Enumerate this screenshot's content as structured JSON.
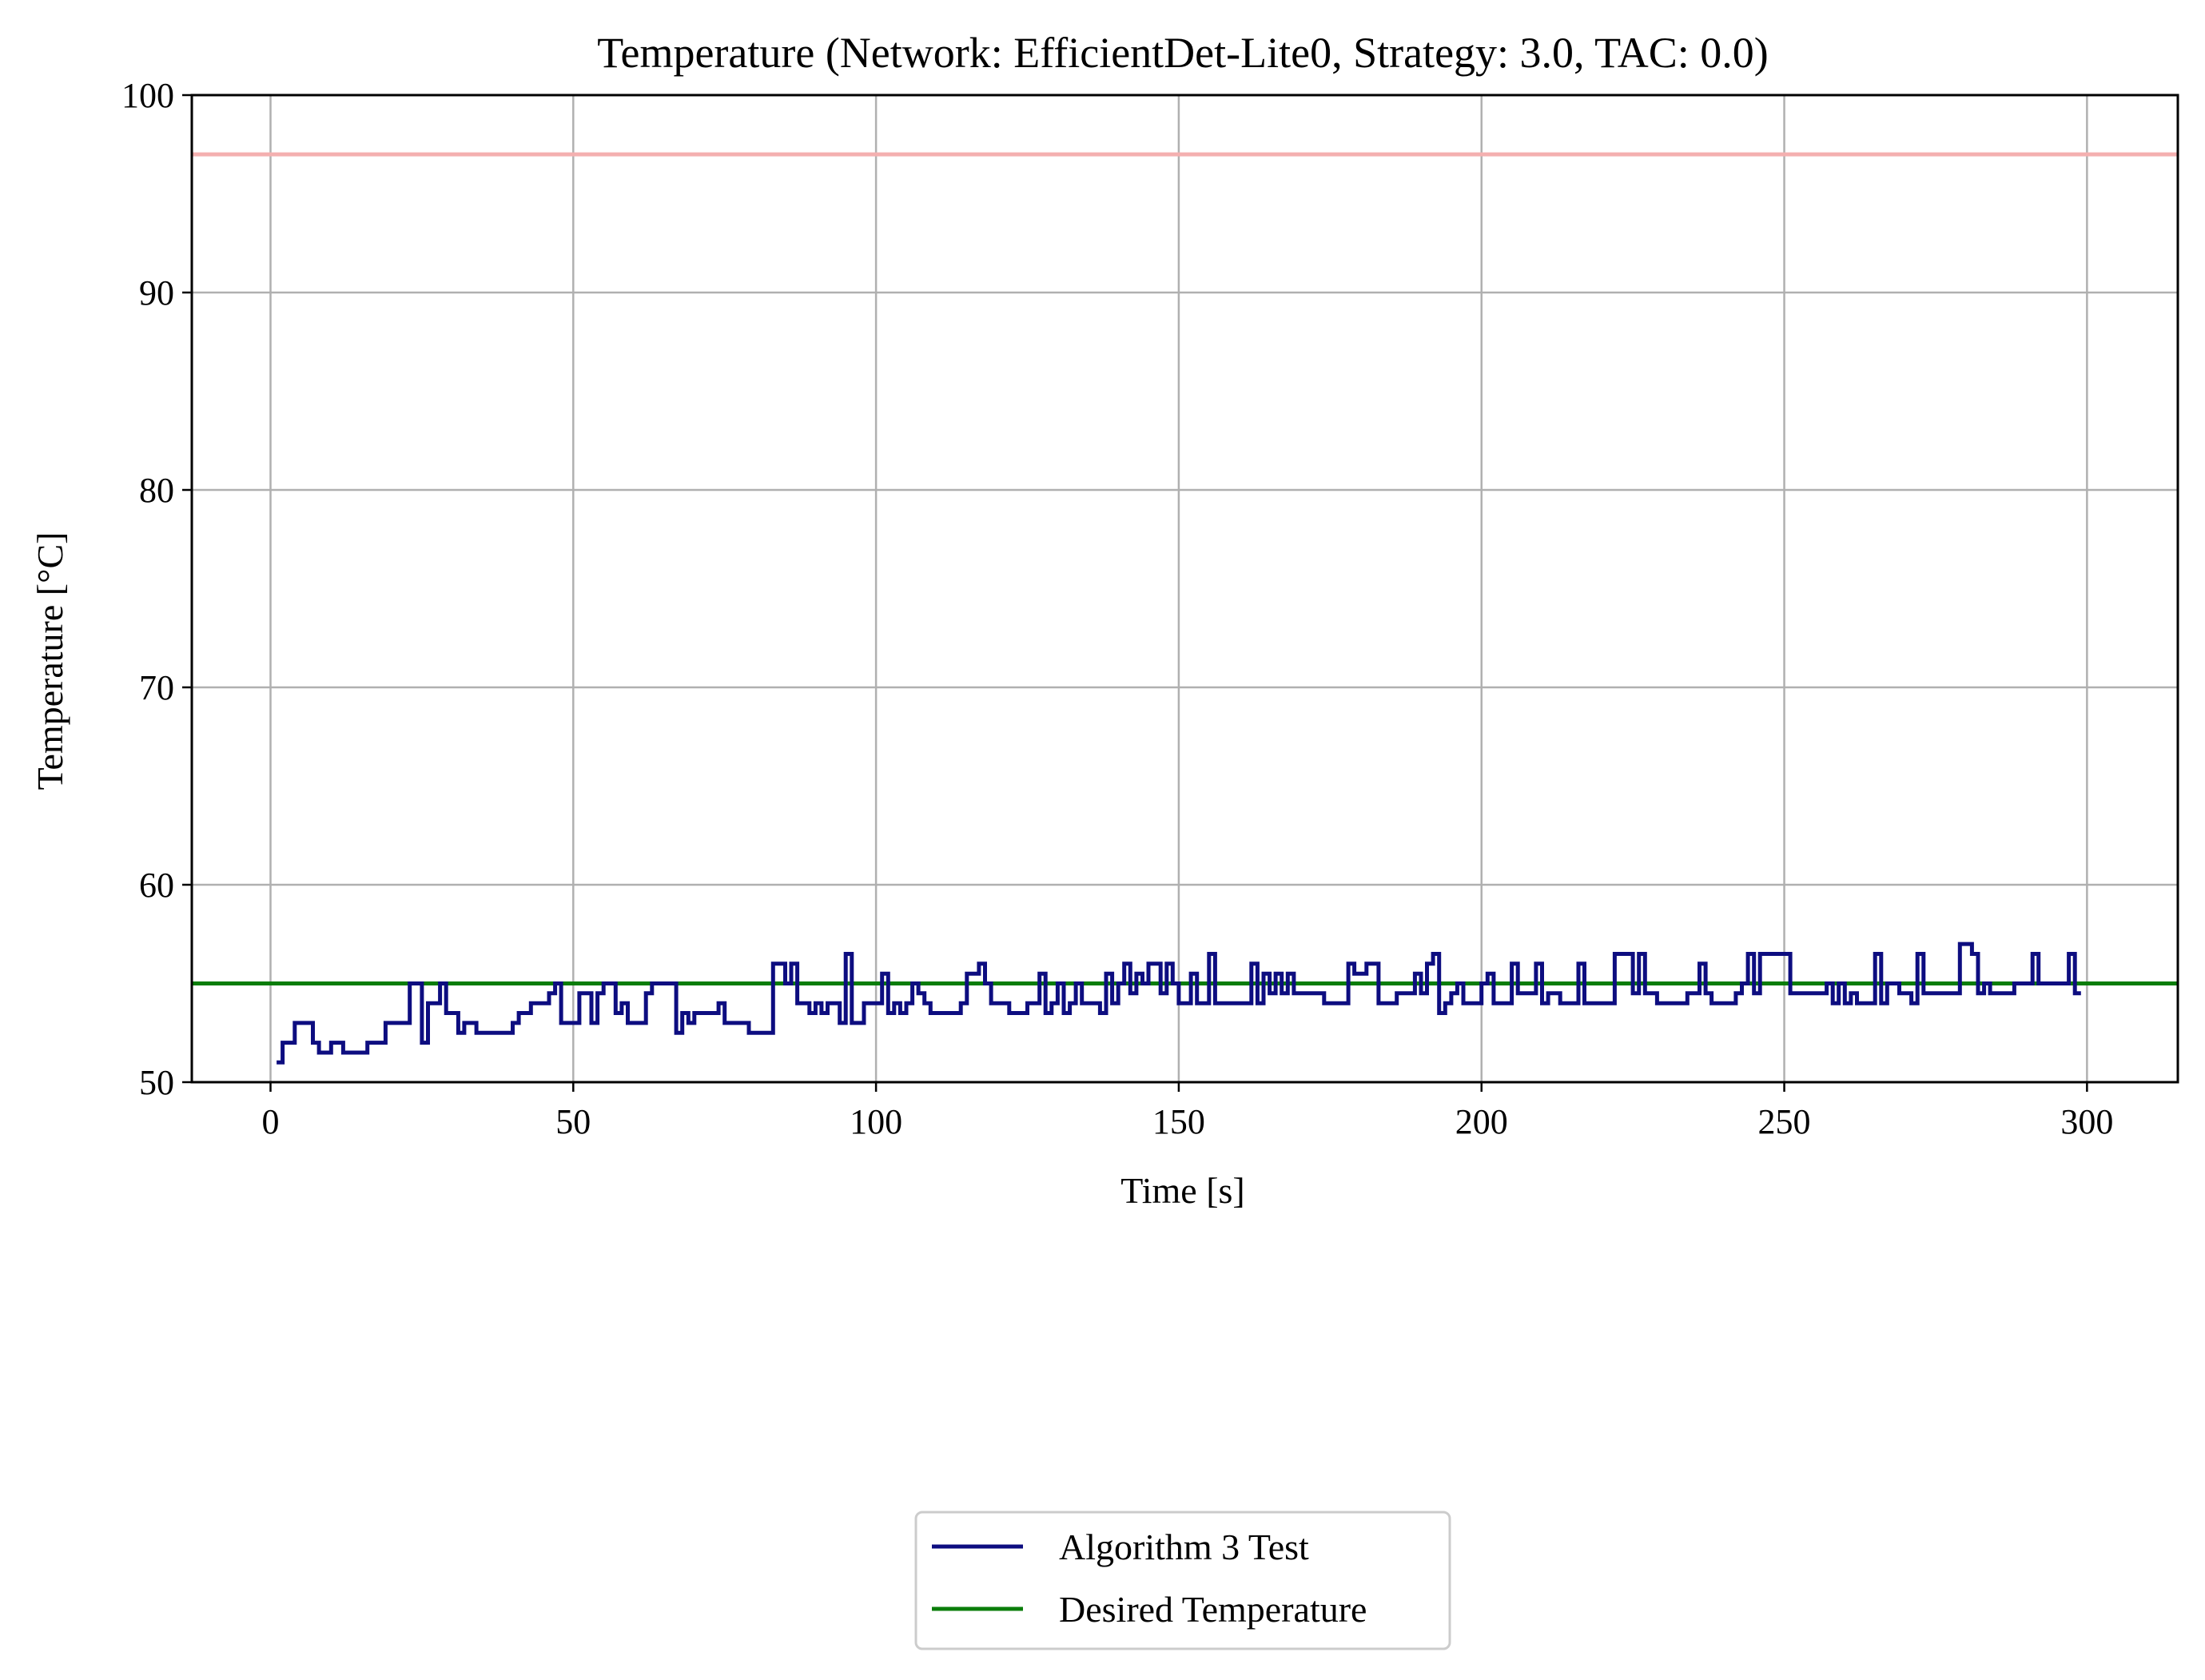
{
  "chart_data": {
    "type": "line",
    "title": "Temperature (Network: EfficientDet-Lite0, Strategy: 3.0, TAC: 0.0)",
    "xlabel": "Time [s]",
    "ylabel": "Temperature [°C]",
    "xlim": [
      -13,
      315
    ],
    "ylim": [
      50,
      100
    ],
    "xticks": [
      0,
      50,
      100,
      150,
      200,
      250,
      300
    ],
    "yticks": [
      50,
      60,
      70,
      80,
      90,
      100
    ],
    "grid": true,
    "legend_position": "bottom-center",
    "reference_lines": [
      {
        "y": 97,
        "color": "#f4b0b0",
        "in_legend": false
      },
      {
        "y": 55,
        "color": "#0a7d0a",
        "in_legend": true
      }
    ],
    "series": [
      {
        "name": "Algorithm 3 Test",
        "color": "#0d0d80",
        "style": "step",
        "points": [
          [
            1,
            51
          ],
          [
            2,
            52
          ],
          [
            3,
            52
          ],
          [
            4,
            53
          ],
          [
            5,
            53
          ],
          [
            6,
            53
          ],
          [
            7,
            52
          ],
          [
            8,
            51.5
          ],
          [
            9,
            51.5
          ],
          [
            10,
            52
          ],
          [
            11,
            52
          ],
          [
            12,
            51.5
          ],
          [
            13,
            51.5
          ],
          [
            14,
            51.5
          ],
          [
            15,
            51.5
          ],
          [
            16,
            52
          ],
          [
            17,
            52
          ],
          [
            18,
            52
          ],
          [
            19,
            53
          ],
          [
            20,
            53
          ],
          [
            21,
            53
          ],
          [
            22,
            53
          ],
          [
            23,
            55
          ],
          [
            24,
            55
          ],
          [
            25,
            52
          ],
          [
            26,
            54
          ],
          [
            27,
            54
          ],
          [
            28,
            55
          ],
          [
            29,
            53.5
          ],
          [
            30,
            53.5
          ],
          [
            31,
            52.5
          ],
          [
            32,
            53
          ],
          [
            33,
            53
          ],
          [
            34,
            52.5
          ],
          [
            35,
            52.5
          ],
          [
            36,
            52.5
          ],
          [
            37,
            52.5
          ],
          [
            38,
            52.5
          ],
          [
            39,
            52.5
          ],
          [
            40,
            53
          ],
          [
            41,
            53.5
          ],
          [
            42,
            53.5
          ],
          [
            43,
            54
          ],
          [
            44,
            54
          ],
          [
            45,
            54
          ],
          [
            46,
            54.5
          ],
          [
            47,
            55
          ],
          [
            48,
            53
          ],
          [
            49,
            53
          ],
          [
            50,
            53
          ],
          [
            51,
            54.5
          ],
          [
            52,
            54.5
          ],
          [
            53,
            53
          ],
          [
            54,
            54.5
          ],
          [
            55,
            55
          ],
          [
            56,
            55
          ],
          [
            57,
            53.5
          ],
          [
            58,
            54
          ],
          [
            59,
            53
          ],
          [
            60,
            53
          ],
          [
            61,
            53
          ],
          [
            62,
            54.5
          ],
          [
            63,
            55
          ],
          [
            64,
            55
          ],
          [
            65,
            55
          ],
          [
            66,
            55
          ],
          [
            67,
            52.5
          ],
          [
            68,
            53.5
          ],
          [
            69,
            53
          ],
          [
            70,
            53.5
          ],
          [
            71,
            53.5
          ],
          [
            72,
            53.5
          ],
          [
            73,
            53.5
          ],
          [
            74,
            54
          ],
          [
            75,
            53
          ],
          [
            76,
            53
          ],
          [
            77,
            53
          ],
          [
            78,
            53
          ],
          [
            79,
            52.5
          ],
          [
            80,
            52.5
          ],
          [
            81,
            52.5
          ],
          [
            82,
            52.5
          ],
          [
            83,
            56
          ],
          [
            84,
            56
          ],
          [
            85,
            55
          ],
          [
            86,
            56
          ],
          [
            87,
            54
          ],
          [
            88,
            54
          ],
          [
            89,
            53.5
          ],
          [
            90,
            54
          ],
          [
            91,
            53.5
          ],
          [
            92,
            54
          ],
          [
            93,
            54
          ],
          [
            94,
            53
          ],
          [
            95,
            56.5
          ],
          [
            96,
            53
          ],
          [
            97,
            53
          ],
          [
            98,
            54
          ],
          [
            99,
            54
          ],
          [
            100,
            54
          ],
          [
            101,
            55.5
          ],
          [
            102,
            53.5
          ],
          [
            103,
            54
          ],
          [
            104,
            53.5
          ],
          [
            105,
            54
          ],
          [
            106,
            55
          ],
          [
            107,
            54.5
          ],
          [
            108,
            54
          ],
          [
            109,
            53.5
          ],
          [
            110,
            53.5
          ],
          [
            111,
            53.5
          ],
          [
            112,
            53.5
          ],
          [
            113,
            53.5
          ],
          [
            114,
            54
          ],
          [
            115,
            55.5
          ],
          [
            116,
            55.5
          ],
          [
            117,
            56
          ],
          [
            118,
            55
          ],
          [
            119,
            54
          ],
          [
            120,
            54
          ],
          [
            121,
            54
          ],
          [
            122,
            53.5
          ],
          [
            123,
            53.5
          ],
          [
            124,
            53.5
          ],
          [
            125,
            54
          ],
          [
            126,
            54
          ],
          [
            127,
            55.5
          ],
          [
            128,
            53.5
          ],
          [
            129,
            54
          ],
          [
            130,
            55
          ],
          [
            131,
            53.5
          ],
          [
            132,
            54
          ],
          [
            133,
            55
          ],
          [
            134,
            54
          ],
          [
            135,
            54
          ],
          [
            136,
            54
          ],
          [
            137,
            53.5
          ],
          [
            138,
            55.5
          ],
          [
            139,
            54
          ],
          [
            140,
            55
          ],
          [
            141,
            56
          ],
          [
            142,
            54.5
          ],
          [
            143,
            55.5
          ],
          [
            144,
            55
          ],
          [
            145,
            56
          ],
          [
            146,
            56
          ],
          [
            147,
            54.5
          ],
          [
            148,
            56
          ],
          [
            149,
            55
          ],
          [
            150,
            54
          ],
          [
            151,
            54
          ],
          [
            152,
            55.5
          ],
          [
            153,
            54
          ],
          [
            154,
            54
          ],
          [
            155,
            56.5
          ],
          [
            156,
            54
          ],
          [
            157,
            54
          ],
          [
            158,
            54
          ],
          [
            159,
            54
          ],
          [
            160,
            54
          ],
          [
            161,
            54
          ],
          [
            162,
            56
          ],
          [
            163,
            54
          ],
          [
            164,
            55.5
          ],
          [
            165,
            54.5
          ],
          [
            166,
            55.5
          ],
          [
            167,
            54.5
          ],
          [
            168,
            55.5
          ],
          [
            169,
            54.5
          ],
          [
            170,
            54.5
          ],
          [
            171,
            54.5
          ],
          [
            172,
            54.5
          ],
          [
            173,
            54.5
          ],
          [
            174,
            54
          ],
          [
            175,
            54
          ],
          [
            176,
            54
          ],
          [
            177,
            54
          ],
          [
            178,
            56
          ],
          [
            179,
            55.5
          ],
          [
            180,
            55.5
          ],
          [
            181,
            56
          ],
          [
            182,
            56
          ],
          [
            183,
            54
          ],
          [
            184,
            54
          ],
          [
            185,
            54
          ],
          [
            186,
            54.5
          ],
          [
            187,
            54.5
          ],
          [
            188,
            54.5
          ],
          [
            189,
            55.5
          ],
          [
            190,
            54.5
          ],
          [
            191,
            56
          ],
          [
            192,
            56.5
          ],
          [
            193,
            53.5
          ],
          [
            194,
            54
          ],
          [
            195,
            54.5
          ],
          [
            196,
            55
          ],
          [
            197,
            54
          ],
          [
            198,
            54
          ],
          [
            199,
            54
          ],
          [
            200,
            55
          ],
          [
            201,
            55.5
          ],
          [
            202,
            54
          ],
          [
            203,
            54
          ],
          [
            204,
            54
          ],
          [
            205,
            56
          ],
          [
            206,
            54.5
          ],
          [
            207,
            54.5
          ],
          [
            208,
            54.5
          ],
          [
            209,
            56
          ],
          [
            210,
            54
          ],
          [
            211,
            54.5
          ],
          [
            212,
            54.5
          ],
          [
            213,
            54
          ],
          [
            214,
            54
          ],
          [
            215,
            54
          ],
          [
            216,
            56
          ],
          [
            217,
            54
          ],
          [
            218,
            54
          ],
          [
            219,
            54
          ],
          [
            220,
            54
          ],
          [
            221,
            54
          ],
          [
            222,
            56.5
          ],
          [
            223,
            56.5
          ],
          [
            224,
            56.5
          ],
          [
            225,
            54.5
          ],
          [
            226,
            56.5
          ],
          [
            227,
            54.5
          ],
          [
            228,
            54.5
          ],
          [
            229,
            54
          ],
          [
            230,
            54
          ],
          [
            231,
            54
          ],
          [
            232,
            54
          ],
          [
            233,
            54
          ],
          [
            234,
            54.5
          ],
          [
            235,
            54.5
          ],
          [
            236,
            56
          ],
          [
            237,
            54.5
          ],
          [
            238,
            54
          ],
          [
            239,
            54
          ],
          [
            240,
            54
          ],
          [
            241,
            54
          ],
          [
            242,
            54.5
          ],
          [
            243,
            55
          ],
          [
            244,
            56.5
          ],
          [
            245,
            54.5
          ],
          [
            246,
            56.5
          ],
          [
            247,
            56.5
          ],
          [
            248,
            56.5
          ],
          [
            249,
            56.5
          ],
          [
            250,
            56.5
          ],
          [
            251,
            54.5
          ],
          [
            252,
            54.5
          ],
          [
            253,
            54.5
          ],
          [
            254,
            54.5
          ],
          [
            255,
            54.5
          ],
          [
            256,
            54.5
          ],
          [
            257,
            55
          ],
          [
            258,
            54
          ],
          [
            259,
            55
          ],
          [
            260,
            54
          ],
          [
            261,
            54.5
          ],
          [
            262,
            54
          ],
          [
            263,
            54
          ],
          [
            264,
            54
          ],
          [
            265,
            56.5
          ],
          [
            266,
            54
          ],
          [
            267,
            55
          ],
          [
            268,
            55
          ],
          [
            269,
            54.5
          ],
          [
            270,
            54.5
          ],
          [
            271,
            54
          ],
          [
            272,
            56.5
          ],
          [
            273,
            54.5
          ],
          [
            274,
            54.5
          ],
          [
            275,
            54.5
          ],
          [
            276,
            54.5
          ],
          [
            277,
            54.5
          ],
          [
            278,
            54.5
          ],
          [
            279,
            57
          ],
          [
            280,
            57
          ],
          [
            281,
            56.5
          ],
          [
            282,
            54.5
          ],
          [
            283,
            55
          ],
          [
            284,
            54.5
          ],
          [
            285,
            54.5
          ],
          [
            286,
            54.5
          ],
          [
            287,
            54.5
          ],
          [
            288,
            55
          ],
          [
            289,
            55
          ],
          [
            290,
            55
          ],
          [
            291,
            56.5
          ],
          [
            292,
            55
          ],
          [
            293,
            55
          ],
          [
            294,
            55
          ],
          [
            295,
            55
          ],
          [
            296,
            55
          ],
          [
            297,
            56.5
          ],
          [
            298,
            54.5
          ],
          [
            299,
            54.5
          ]
        ]
      },
      {
        "name": "Desired Temperature",
        "color": "#0a7d0a",
        "style": "hline",
        "y": 55
      }
    ]
  }
}
